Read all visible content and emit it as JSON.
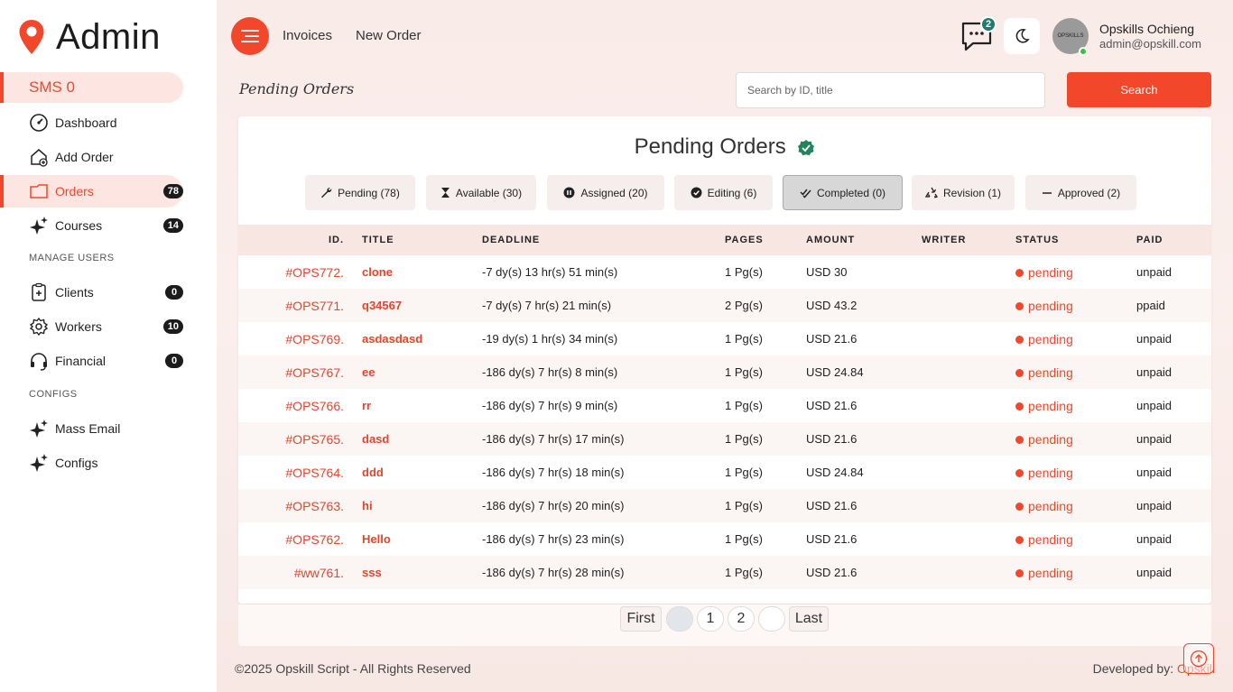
{
  "brand": {
    "title": "Admin",
    "accent": "#f2472a"
  },
  "sidebar": {
    "sms": "SMS 0",
    "items": [
      {
        "label": "Dashboard",
        "icon": "gauge-icon",
        "badge": ""
      },
      {
        "label": "Add Order",
        "icon": "house-plus-icon",
        "badge": ""
      },
      {
        "label": "Orders",
        "icon": "folder-icon",
        "badge": "78"
      },
      {
        "label": "Courses",
        "icon": "sparkle-icon",
        "badge": "14"
      },
      {
        "label": "Clients",
        "icon": "clipboard-plus-icon",
        "badge": "0"
      },
      {
        "label": "Workers",
        "icon": "gear-icon",
        "badge": "10"
      },
      {
        "label": "Financial",
        "icon": "headset-icon",
        "badge": "0"
      },
      {
        "label": "Mass Email",
        "icon": "sparkle-icon",
        "badge": ""
      },
      {
        "label": "Configs",
        "icon": "sparkle-icon",
        "badge": ""
      }
    ],
    "sections": {
      "manage_users": "MANAGE USERS",
      "configs": "CONFIGS"
    }
  },
  "header": {
    "links": [
      "Invoices",
      "New Order"
    ],
    "chat_count": "2",
    "avatar_text": "OPSKILLS",
    "user_name": "Opskills Ochieng",
    "user_email": "admin@opskill.com"
  },
  "page": {
    "title": "Pending Orders",
    "search_placeholder": "Search by ID, title",
    "search_label": "Search"
  },
  "card": {
    "title": "Pending Orders",
    "tabs": [
      {
        "label": "Pending (78)",
        "icon": "wrench-icon"
      },
      {
        "label": "Available (30)",
        "icon": "hourglass-icon"
      },
      {
        "label": "Assigned (20)",
        "icon": "pause-circle-icon"
      },
      {
        "label": "Editing (6)",
        "icon": "check-circle-icon"
      },
      {
        "label": "Completed (0)",
        "icon": "double-check-icon"
      },
      {
        "label": "Revision (1)",
        "icon": "recycle-icon"
      },
      {
        "label": "Approved (2)",
        "icon": "minus-icon"
      }
    ]
  },
  "table": {
    "headers": [
      "ID.",
      "TITLE",
      "DEADLINE",
      "PAGES",
      "AMOUNT",
      "WRITER",
      "STATUS",
      "PAID"
    ],
    "rows": [
      {
        "id": "#OPS772.",
        "title": "clone",
        "deadline": "-7 dy(s) 13 hr(s) 51 min(s)",
        "pages": "1 Pg(s)",
        "amount": "USD 30",
        "writer": "",
        "status": "pending",
        "paid": "unpaid"
      },
      {
        "id": "#OPS771.",
        "title": "q34567",
        "deadline": "-7 dy(s) 7 hr(s) 21 min(s)",
        "pages": "2 Pg(s)",
        "amount": "USD 43.2",
        "writer": "",
        "status": "pending",
        "paid": "ppaid"
      },
      {
        "id": "#OPS769.",
        "title": "asdasdasd",
        "deadline": "-19 dy(s) 1 hr(s) 34 min(s)",
        "pages": "1 Pg(s)",
        "amount": "USD 21.6",
        "writer": "",
        "status": "pending",
        "paid": "unpaid"
      },
      {
        "id": "#OPS767.",
        "title": "ee",
        "deadline": "-186 dy(s) 7 hr(s) 8 min(s)",
        "pages": "1 Pg(s)",
        "amount": "USD 24.84",
        "writer": "",
        "status": "pending",
        "paid": "unpaid"
      },
      {
        "id": "#OPS766.",
        "title": "rr",
        "deadline": "-186 dy(s) 7 hr(s) 9 min(s)",
        "pages": "1 Pg(s)",
        "amount": "USD 21.6",
        "writer": "",
        "status": "pending",
        "paid": "unpaid"
      },
      {
        "id": "#OPS765.",
        "title": "dasd",
        "deadline": "-186 dy(s) 7 hr(s) 17 min(s)",
        "pages": "1 Pg(s)",
        "amount": "USD 21.6",
        "writer": "",
        "status": "pending",
        "paid": "unpaid"
      },
      {
        "id": "#OPS764.",
        "title": "ddd",
        "deadline": "-186 dy(s) 7 hr(s) 18 min(s)",
        "pages": "1 Pg(s)",
        "amount": "USD 24.84",
        "writer": "",
        "status": "pending",
        "paid": "unpaid"
      },
      {
        "id": "#OPS763.",
        "title": "hi",
        "deadline": "-186 dy(s) 7 hr(s) 20 min(s)",
        "pages": "1 Pg(s)",
        "amount": "USD 21.6",
        "writer": "",
        "status": "pending",
        "paid": "unpaid"
      },
      {
        "id": "#OPS762.",
        "title": "Hello",
        "deadline": "-186 dy(s) 7 hr(s) 23 min(s)",
        "pages": "1 Pg(s)",
        "amount": "USD 21.6",
        "writer": "",
        "status": "pending",
        "paid": "unpaid"
      },
      {
        "id": "#ww761.",
        "title": "sss",
        "deadline": "-186 dy(s) 7 hr(s) 28 min(s)",
        "pages": "1 Pg(s)",
        "amount": "USD 21.6",
        "writer": "",
        "status": "pending",
        "paid": "unpaid"
      }
    ]
  },
  "pagination": {
    "first": "First",
    "pages": [
      "",
      "1",
      "2",
      ""
    ],
    "last": "Last"
  },
  "footer": {
    "copyright": "©2025 Opskill Script - All Rights Reserved",
    "developed_prefix": "Developed by: ",
    "developer": "Opskill"
  }
}
